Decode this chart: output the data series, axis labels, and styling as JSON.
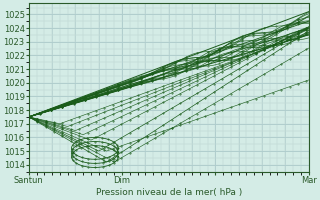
{
  "bg_color": "#d4ece6",
  "grid_major_color": "#aecccc",
  "grid_minor_color": "#c4dcd8",
  "line_color": "#1a5c1a",
  "ylim": [
    1013.5,
    1025.8
  ],
  "yticks": [
    1014,
    1015,
    1016,
    1017,
    1018,
    1019,
    1020,
    1021,
    1022,
    1023,
    1024,
    1025
  ],
  "xlim": [
    0,
    72
  ],
  "xtick_positions": [
    0,
    24,
    48,
    72
  ],
  "xtick_labels": [
    "Santun",
    "Dim",
    "",
    "Mar"
  ],
  "xlabel": "Pression niveau de la mer( hPa )",
  "origin_x": 0,
  "origin_y": 1017.5
}
